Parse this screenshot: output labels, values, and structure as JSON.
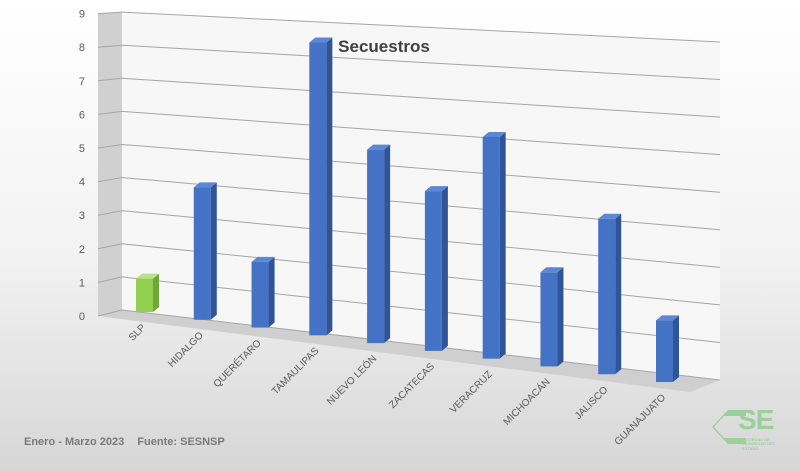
{
  "chart_data": {
    "type": "bar",
    "title": "Secuestros",
    "categories": [
      "SLP",
      "HIDALGO",
      "QUERÉTARO",
      "TAMAULIPAS",
      "NUEVO LEÓN",
      "ZACATECAS",
      "VERACRUZ",
      "MICHOACÁN",
      "JALISCO",
      "GUANAJUATO"
    ],
    "values": [
      1,
      4,
      2,
      9,
      6,
      5,
      7,
      3,
      5,
      2
    ],
    "ylim": [
      0,
      9
    ],
    "yticks": [
      0,
      1,
      2,
      3,
      4,
      5,
      6,
      7,
      8,
      9
    ],
    "grid": true,
    "three_d": true,
    "colors": {
      "highlight": "#92d050",
      "default": "#4472c4"
    }
  },
  "footer": {
    "period": "Enero - Marzo 2023",
    "source": "Fuente: SESNSP"
  },
  "logo": {
    "wordmark": "SE",
    "tagline": "SOCIEDAD DE SEGURIDAD DEL ESTADO"
  }
}
